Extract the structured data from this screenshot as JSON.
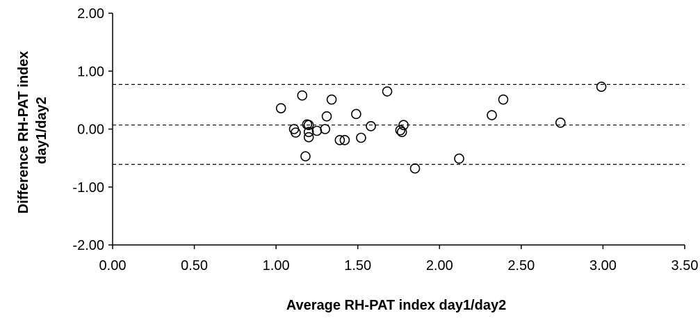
{
  "chart_data": {
    "type": "scatter",
    "title": "",
    "xlabel": "Average RH-PAT index day1/day2",
    "ylabel_lines": [
      "Difference RH-PAT index",
      "day1/day2"
    ],
    "xlim": [
      0,
      3.5
    ],
    "ylim": [
      -2,
      2
    ],
    "x_ticks": [
      "0.00",
      "0.50",
      "1.00",
      "1.50",
      "2.00",
      "2.50",
      "3.00",
      "3.50"
    ],
    "y_ticks": [
      "2.00",
      "1.00",
      "0.00",
      "-1.00",
      "-2.00"
    ],
    "grid": false,
    "reference_lines": [
      {
        "y": 0.77,
        "style": "dashed"
      },
      {
        "y": 0.07,
        "style": "dashed"
      },
      {
        "y": -0.61,
        "style": "dashed"
      }
    ],
    "marker": "open-circle",
    "points": [
      {
        "x": 1.03,
        "y": 0.36
      },
      {
        "x": 1.11,
        "y": 0.0
      },
      {
        "x": 1.12,
        "y": -0.06
      },
      {
        "x": 1.16,
        "y": 0.58
      },
      {
        "x": 1.18,
        "y": -0.47
      },
      {
        "x": 1.19,
        "y": 0.08
      },
      {
        "x": 1.2,
        "y": 0.07
      },
      {
        "x": 1.2,
        "y": -0.05
      },
      {
        "x": 1.2,
        "y": -0.14
      },
      {
        "x": 1.25,
        "y": -0.03
      },
      {
        "x": 1.3,
        "y": 0.0
      },
      {
        "x": 1.31,
        "y": 0.22
      },
      {
        "x": 1.34,
        "y": 0.51
      },
      {
        "x": 1.39,
        "y": -0.19
      },
      {
        "x": 1.42,
        "y": -0.19
      },
      {
        "x": 1.49,
        "y": 0.26
      },
      {
        "x": 1.52,
        "y": -0.15
      },
      {
        "x": 1.58,
        "y": 0.05
      },
      {
        "x": 1.68,
        "y": 0.65
      },
      {
        "x": 1.76,
        "y": -0.02
      },
      {
        "x": 1.77,
        "y": -0.05
      },
      {
        "x": 1.78,
        "y": 0.07
      },
      {
        "x": 1.85,
        "y": -0.68
      },
      {
        "x": 2.12,
        "y": -0.51
      },
      {
        "x": 2.32,
        "y": 0.24
      },
      {
        "x": 2.39,
        "y": 0.51
      },
      {
        "x": 2.74,
        "y": 0.11
      },
      {
        "x": 2.99,
        "y": 0.73
      }
    ]
  }
}
